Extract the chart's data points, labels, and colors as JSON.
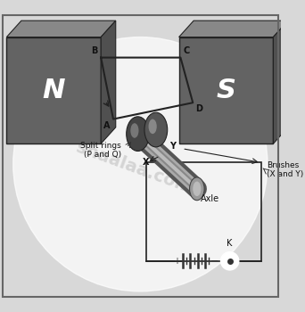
{
  "bg_color": "#d8d8d8",
  "white_bg": "#f5f5f5",
  "N_label": "N",
  "S_label": "S",
  "split_ring_label": "Split rings\n(P and Q)",
  "brushes_label": "Brushes\n(X and Y)",
  "axle_label": "Axle",
  "X_label": "X",
  "Y_label": "Y",
  "K_label": "K",
  "watermark": "shaalaa.com",
  "magnet_front": "#636363",
  "magnet_top": "#888888",
  "magnet_side": "#505050",
  "coil_color": "#222222",
  "circuit_color": "#222222",
  "axle_color1": "#aaaaaa",
  "axle_color2": "#888888",
  "ring_color": "#555555"
}
